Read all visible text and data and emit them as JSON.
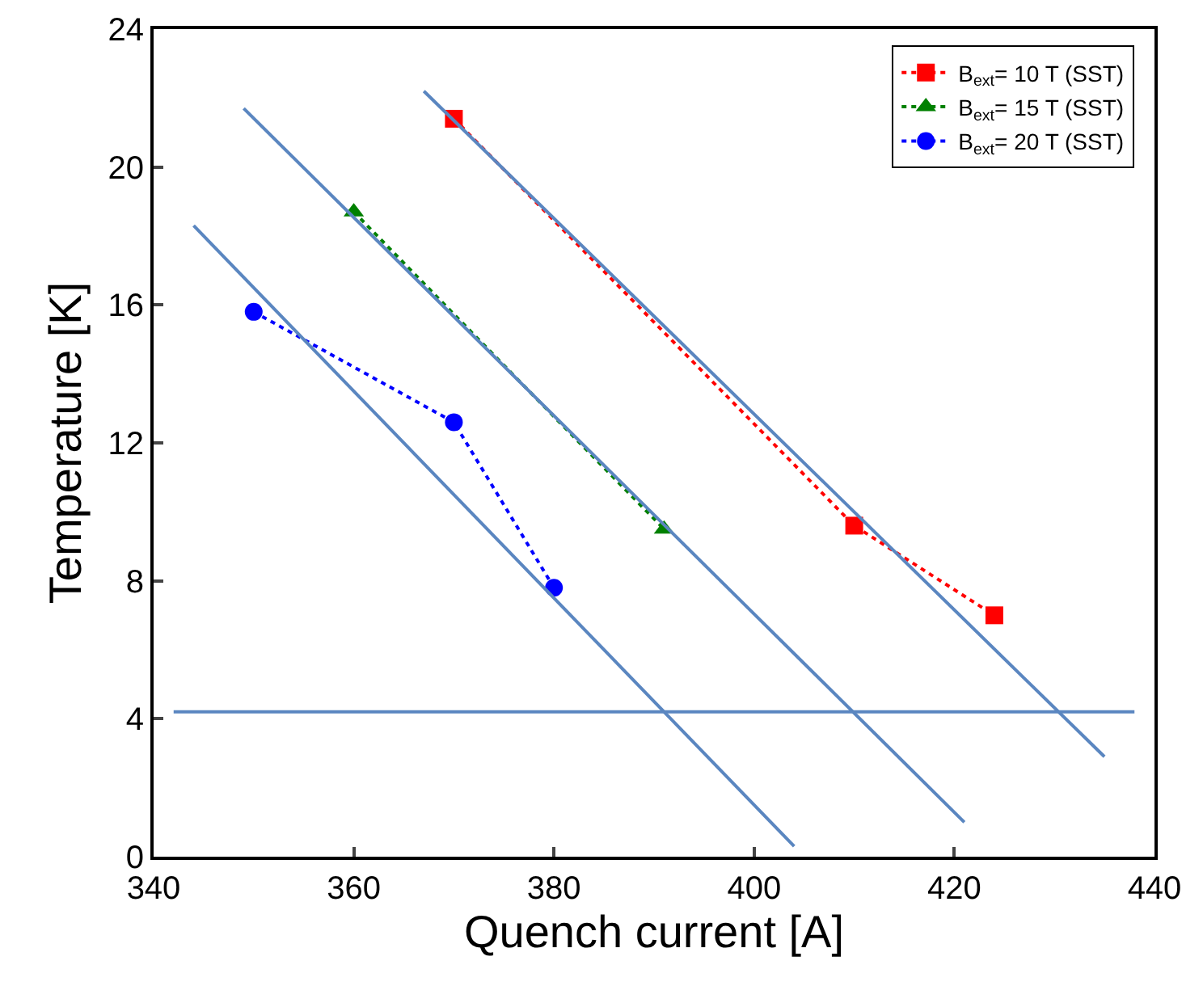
{
  "chart_data": {
    "type": "line",
    "xlabel": "Quench current [A]",
    "ylabel": "Temperature [K]",
    "xlim": [
      340,
      440
    ],
    "xticks": [
      340,
      360,
      380,
      400,
      420,
      440
    ],
    "ylim": [
      0,
      24
    ],
    "yticks": [
      0,
      4,
      8,
      12,
      16,
      20,
      24
    ],
    "grid": false,
    "legend": "top right",
    "series": [
      {
        "name": "B$_{ext}$= 10 T (SST)",
        "color": "#ff0000",
        "marker": "square",
        "line_style": "dotted",
        "x": [
          370,
          410,
          424
        ],
        "values": [
          21.4,
          9.6,
          7.0
        ]
      },
      {
        "name": "B$_{ext}$= 15 T (SST)",
        "color": "#008000",
        "marker": "triangle",
        "line_style": "dotted",
        "x": [
          360,
          391
        ],
        "values": [
          18.7,
          9.5
        ]
      },
      {
        "name": "B$_{ext}$= 20 T (SST)",
        "color": "#0000ff",
        "marker": "circle",
        "line_style": "dotted",
        "x": [
          350,
          370,
          380
        ],
        "values": [
          15.8,
          12.6,
          7.8
        ]
      },
      {
        "color": "#5a86c0",
        "marker": "none",
        "line_style": "solid",
        "x": [
          344,
          404
        ],
        "values": [
          18.3,
          0.3
        ]
      },
      {
        "color": "#5a86c0",
        "marker": "none",
        "line_style": "solid",
        "x": [
          349,
          421
        ],
        "values": [
          21.7,
          1.0
        ]
      },
      {
        "color": "#5a86c0",
        "marker": "none",
        "line_style": "solid",
        "x": [
          367,
          435
        ],
        "values": [
          22.2,
          2.9
        ]
      }
    ],
    "ref_lines": [
      {
        "axis": "y",
        "value": 4.2,
        "color": "#5a86c0",
        "line_style": "solid"
      }
    ]
  }
}
